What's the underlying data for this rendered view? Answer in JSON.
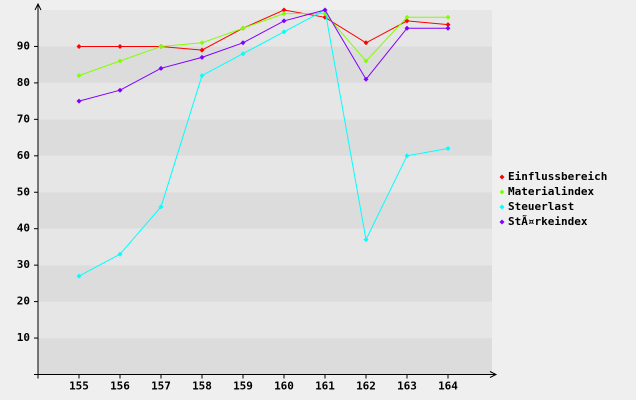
{
  "chart_data": {
    "type": "line",
    "categories": [
      "155",
      "156",
      "157",
      "158",
      "159",
      "160",
      "161",
      "162",
      "163",
      "164"
    ],
    "series": [
      {
        "name": "Einflussbereich",
        "color": "#ff0000",
        "values": [
          90,
          90,
          90,
          89,
          95,
          100,
          98,
          91,
          97,
          96
        ]
      },
      {
        "name": "Materialindex",
        "color": "#80ff00",
        "values": [
          82,
          86,
          90,
          91,
          95,
          99,
          99,
          86,
          98,
          98
        ]
      },
      {
        "name": "Steuerlast",
        "color": "#00ffff",
        "values": [
          27,
          33,
          46,
          82,
          88,
          94,
          100,
          37,
          60,
          62
        ]
      },
      {
        "name": "StÃ¤rkeindex",
        "color": "#8000ff",
        "values": [
          75,
          78,
          84,
          87,
          91,
          97,
          100,
          81,
          95,
          95
        ]
      }
    ],
    "ylim": [
      0,
      100
    ],
    "yticks": [
      10,
      20,
      30,
      40,
      50,
      60,
      70,
      80,
      90
    ],
    "grid": true,
    "legend": "right"
  }
}
